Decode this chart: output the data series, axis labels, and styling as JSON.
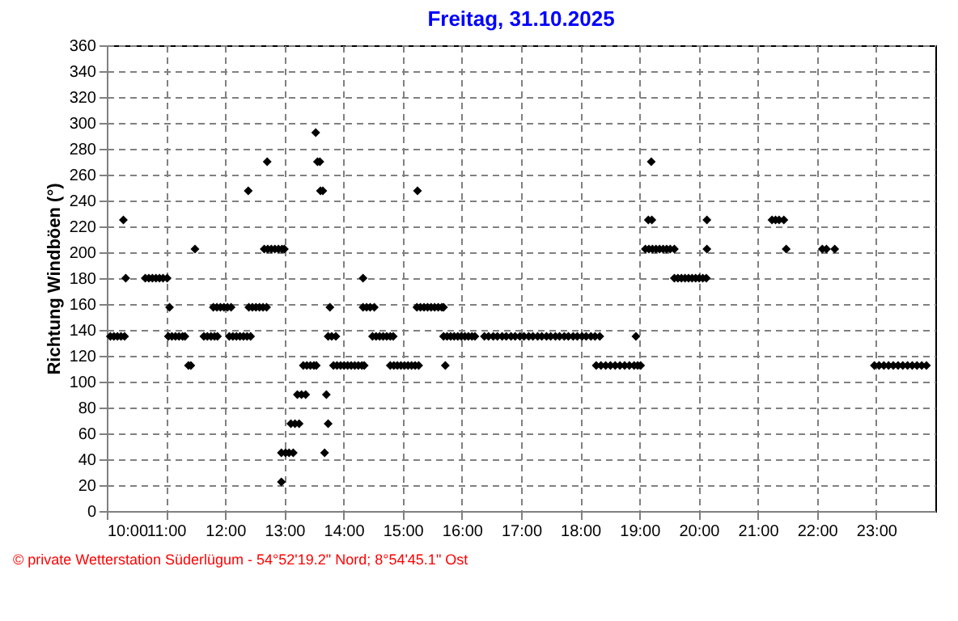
{
  "chart_data": {
    "type": "scatter",
    "title": "Freitag, 31.10.2025",
    "ylabel": "Richtung Windböen (°)",
    "annotations": [
      "© private Wetterstation Süderlügum - 54°52'19.2\" Nord; 8°54'45.1\" Ost"
    ],
    "xlim": [
      10,
      24
    ],
    "xticks": [
      {
        "value": 10,
        "label": "10:00"
      },
      {
        "value": 11,
        "label": "11:00"
      },
      {
        "value": 12,
        "label": "12:00"
      },
      {
        "value": 13,
        "label": "13:00"
      },
      {
        "value": 14,
        "label": "14:00"
      },
      {
        "value": 15,
        "label": "15:00"
      },
      {
        "value": 16,
        "label": "16:00"
      },
      {
        "value": 17,
        "label": "17:00"
      },
      {
        "value": 18,
        "label": "18:00"
      },
      {
        "value": 19,
        "label": "19:00"
      },
      {
        "value": 20,
        "label": "20:00"
      },
      {
        "value": 21,
        "label": "21:00"
      },
      {
        "value": 22,
        "label": "22:00"
      },
      {
        "value": 23,
        "label": "23:00"
      }
    ],
    "ylim": [
      0,
      360
    ],
    "yticks": [
      0,
      20,
      40,
      60,
      80,
      100,
      120,
      140,
      160,
      180,
      200,
      220,
      240,
      260,
      280,
      300,
      320,
      340,
      360
    ],
    "grid": true,
    "marker": "diamond",
    "series": [
      {
        "color": "#000000",
        "x": [
          10.06,
          10.12,
          10.18,
          10.24,
          10.3,
          10.28,
          10.32,
          10.65,
          10.71,
          10.77,
          10.83,
          10.89,
          10.95,
          11.02,
          11.06,
          11.04,
          11.1,
          11.16,
          11.22,
          11.28,
          11.32,
          11.38,
          11.42,
          11.49,
          11.64,
          11.7,
          11.76,
          11.82,
          11.87,
          11.8,
          11.86,
          11.92,
          11.98,
          12.04,
          12.1,
          12.07,
          12.13,
          12.19,
          12.25,
          12.31,
          12.37,
          12.43,
          12.39,
          12.4,
          12.46,
          12.52,
          12.58,
          12.64,
          12.7,
          12.71,
          12.66,
          12.72,
          12.78,
          12.84,
          12.9,
          12.96,
          13.0,
          12.95,
          12.95,
          13.02,
          13.08,
          13.15,
          13.11,
          13.18,
          13.25,
          13.22,
          13.29,
          13.36,
          13.32,
          13.38,
          13.44,
          13.5,
          13.54,
          13.53,
          13.56,
          13.6,
          13.61,
          13.65,
          13.68,
          13.71,
          13.74,
          13.74,
          13.8,
          13.87,
          13.77,
          13.83,
          13.89,
          13.95,
          14.01,
          14.07,
          14.13,
          14.19,
          14.25,
          14.31,
          14.35,
          14.33,
          14.33,
          14.39,
          14.45,
          14.52,
          14.49,
          14.55,
          14.61,
          14.67,
          14.73,
          14.79,
          14.84,
          14.79,
          14.85,
          14.91,
          14.97,
          15.03,
          15.09,
          15.15,
          15.21,
          15.27,
          15.25,
          15.24,
          15.3,
          15.36,
          15.42,
          15.48,
          15.54,
          15.6,
          15.66,
          15.69,
          15.72,
          15.69,
          15.75,
          15.81,
          15.87,
          15.93,
          15.99,
          16.05,
          16.11,
          16.17,
          16.22,
          16.38,
          16.45,
          16.53,
          16.6,
          16.68,
          16.75,
          16.83,
          16.9,
          16.98,
          17.05,
          17.13,
          17.2,
          17.28,
          17.35,
          17.43,
          17.5,
          17.58,
          17.65,
          17.73,
          17.8,
          17.88,
          17.95,
          18.03,
          18.1,
          18.18,
          18.25,
          18.33,
          18.27,
          18.35,
          18.43,
          18.51,
          18.59,
          18.67,
          18.75,
          18.83,
          18.91,
          18.97,
          19.02,
          18.94,
          19.1,
          19.16,
          19.22,
          19.28,
          19.34,
          19.4,
          19.46,
          19.52,
          19.59,
          19.15,
          19.21,
          19.2,
          19.59,
          19.65,
          19.71,
          19.77,
          19.83,
          19.89,
          19.95,
          20.01,
          20.07,
          20.13,
          20.14,
          20.14,
          21.24,
          21.3,
          21.36,
          21.44,
          21.48,
          22.09,
          22.16,
          22.3,
          22.97,
          23.05,
          23.13,
          23.21,
          23.29,
          23.37,
          23.45,
          23.53,
          23.61,
          23.69,
          23.77,
          23.85
        ],
        "values": [
          135,
          135,
          135,
          135,
          135,
          225,
          180,
          180,
          180,
          180,
          180,
          180,
          180,
          180,
          157.5,
          135,
          135,
          135,
          135,
          135,
          135,
          112.5,
          112.5,
          202.5,
          135,
          135,
          135,
          135,
          135,
          157.5,
          157.5,
          157.5,
          157.5,
          157.5,
          157.5,
          135,
          135,
          135,
          135,
          135,
          135,
          135,
          247.5,
          157.5,
          157.5,
          157.5,
          157.5,
          157.5,
          157.5,
          270,
          202.5,
          202.5,
          202.5,
          202.5,
          202.5,
          202.5,
          202.5,
          22.5,
          45,
          45,
          45,
          45,
          67.5,
          67.5,
          67.5,
          90,
          90,
          90,
          112.5,
          112.5,
          112.5,
          112.5,
          112.5,
          292.5,
          270,
          270,
          247.5,
          247.5,
          45,
          90,
          67.5,
          135,
          135,
          135,
          157.5,
          112.5,
          112.5,
          112.5,
          112.5,
          112.5,
          112.5,
          112.5,
          112.5,
          112.5,
          112.5,
          180,
          157.5,
          157.5,
          157.5,
          157.5,
          135,
          135,
          135,
          135,
          135,
          135,
          135,
          112.5,
          112.5,
          112.5,
          112.5,
          112.5,
          112.5,
          112.5,
          112.5,
          112.5,
          247.5,
          157.5,
          157.5,
          157.5,
          157.5,
          157.5,
          157.5,
          157.5,
          157.5,
          157.5,
          112.5,
          135,
          135,
          135,
          135,
          135,
          135,
          135,
          135,
          135,
          135,
          135,
          135,
          135,
          135,
          135,
          135,
          135,
          135,
          135,
          135,
          135,
          135,
          135,
          135,
          135,
          135,
          135,
          135,
          135,
          135,
          135,
          135,
          135,
          135,
          135,
          135,
          135,
          112.5,
          112.5,
          112.5,
          112.5,
          112.5,
          112.5,
          112.5,
          112.5,
          112.5,
          112.5,
          112.5,
          135,
          202.5,
          202.5,
          202.5,
          202.5,
          202.5,
          202.5,
          202.5,
          202.5,
          202.5,
          225,
          225,
          270,
          180,
          180,
          180,
          180,
          180,
          180,
          180,
          180,
          180,
          180,
          225,
          202.5,
          225,
          225,
          225,
          225,
          202.5,
          202.5,
          202.5,
          202.5,
          112.5,
          112.5,
          112.5,
          112.5,
          112.5,
          112.5,
          112.5,
          112.5,
          112.5,
          112.5,
          112.5,
          112.5
        ]
      }
    ]
  }
}
